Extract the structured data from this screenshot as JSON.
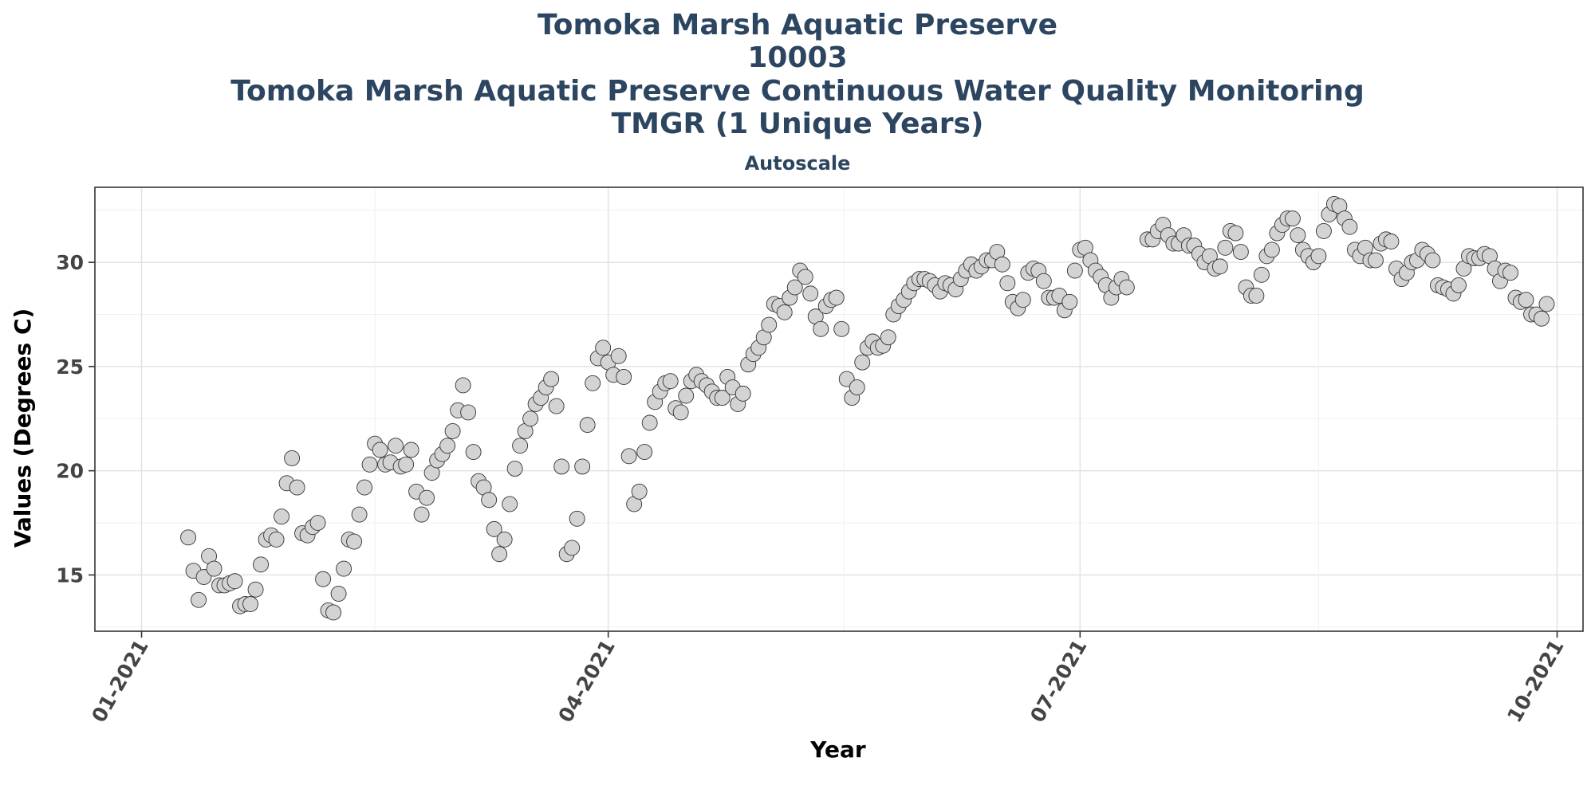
{
  "chart_data": {
    "type": "scatter",
    "title_lines": [
      "Tomoka Marsh Aquatic Preserve",
      "10003",
      "Tomoka Marsh Aquatic Preserve Continuous Water Quality Monitoring",
      "TMGR (1 Unique Years)"
    ],
    "subtitle": "Autoscale",
    "xlabel": "Year",
    "ylabel": "Values (Degrees C)",
    "xlim": [
      "2020-12-23",
      "2021-10-06"
    ],
    "ylim": [
      12.3,
      33.6
    ],
    "x_ticks": [
      {
        "label": "01-2021",
        "date": "2021-01-01"
      },
      {
        "label": "04-2021",
        "date": "2021-04-01"
      },
      {
        "label": "07-2021",
        "date": "2021-07-01"
      },
      {
        "label": "10-2021",
        "date": "2021-10-01"
      }
    ],
    "y_ticks": [
      15,
      20,
      25,
      30
    ],
    "grid": true,
    "colors": {
      "point_fill": "#D3D3D3",
      "point_stroke": "#333333",
      "title": "#2C4560"
    },
    "series": [
      {
        "points": [
          [
            "2021-01-10",
            16.8
          ],
          [
            "2021-01-11",
            15.2
          ],
          [
            "2021-01-12",
            13.8
          ],
          [
            "2021-01-13",
            14.9
          ],
          [
            "2021-01-14",
            15.9
          ],
          [
            "2021-01-15",
            15.3
          ],
          [
            "2021-01-16",
            14.5
          ],
          [
            "2021-01-17",
            14.5
          ],
          [
            "2021-01-18",
            14.6
          ],
          [
            "2021-01-19",
            14.7
          ],
          [
            "2021-01-20",
            13.5
          ],
          [
            "2021-01-21",
            13.6
          ],
          [
            "2021-01-22",
            13.6
          ],
          [
            "2021-01-23",
            14.3
          ],
          [
            "2021-01-24",
            15.5
          ],
          [
            "2021-01-25",
            16.7
          ],
          [
            "2021-01-26",
            16.9
          ],
          [
            "2021-01-27",
            16.7
          ],
          [
            "2021-01-28",
            17.8
          ],
          [
            "2021-01-29",
            19.4
          ],
          [
            "2021-01-30",
            20.6
          ],
          [
            "2021-01-31",
            19.2
          ],
          [
            "2021-02-01",
            17.0
          ],
          [
            "2021-02-02",
            16.9
          ],
          [
            "2021-02-03",
            17.3
          ],
          [
            "2021-02-04",
            17.5
          ],
          [
            "2021-02-05",
            14.8
          ],
          [
            "2021-02-06",
            13.3
          ],
          [
            "2021-02-07",
            13.2
          ],
          [
            "2021-02-08",
            14.1
          ],
          [
            "2021-02-09",
            15.3
          ],
          [
            "2021-02-10",
            16.7
          ],
          [
            "2021-02-11",
            16.6
          ],
          [
            "2021-02-12",
            17.9
          ],
          [
            "2021-02-13",
            19.2
          ],
          [
            "2021-02-14",
            20.3
          ],
          [
            "2021-02-15",
            21.3
          ],
          [
            "2021-02-16",
            21.0
          ],
          [
            "2021-02-17",
            20.3
          ],
          [
            "2021-02-18",
            20.4
          ],
          [
            "2021-02-19",
            21.2
          ],
          [
            "2021-02-20",
            20.2
          ],
          [
            "2021-02-21",
            20.3
          ],
          [
            "2021-02-22",
            21.0
          ],
          [
            "2021-02-23",
            19.0
          ],
          [
            "2021-02-24",
            17.9
          ],
          [
            "2021-02-25",
            18.7
          ],
          [
            "2021-02-26",
            19.9
          ],
          [
            "2021-02-27",
            20.5
          ],
          [
            "2021-02-28",
            20.8
          ],
          [
            "2021-03-01",
            21.2
          ],
          [
            "2021-03-02",
            21.9
          ],
          [
            "2021-03-03",
            22.9
          ],
          [
            "2021-03-04",
            24.1
          ],
          [
            "2021-03-05",
            22.8
          ],
          [
            "2021-03-06",
            20.9
          ],
          [
            "2021-03-07",
            19.5
          ],
          [
            "2021-03-08",
            19.2
          ],
          [
            "2021-03-09",
            18.6
          ],
          [
            "2021-03-10",
            17.2
          ],
          [
            "2021-03-11",
            16.0
          ],
          [
            "2021-03-12",
            16.7
          ],
          [
            "2021-03-13",
            18.4
          ],
          [
            "2021-03-14",
            20.1
          ],
          [
            "2021-03-15",
            21.2
          ],
          [
            "2021-03-16",
            21.9
          ],
          [
            "2021-03-17",
            22.5
          ],
          [
            "2021-03-18",
            23.2
          ],
          [
            "2021-03-19",
            23.5
          ],
          [
            "2021-03-20",
            24.0
          ],
          [
            "2021-03-21",
            24.4
          ],
          [
            "2021-03-22",
            23.1
          ],
          [
            "2021-03-23",
            20.2
          ],
          [
            "2021-03-24",
            16.0
          ],
          [
            "2021-03-25",
            16.3
          ],
          [
            "2021-03-26",
            17.7
          ],
          [
            "2021-03-27",
            20.2
          ],
          [
            "2021-03-28",
            22.2
          ],
          [
            "2021-03-29",
            24.2
          ],
          [
            "2021-03-30",
            25.4
          ],
          [
            "2021-03-31",
            25.9
          ],
          [
            "2021-04-01",
            25.2
          ],
          [
            "2021-04-02",
            24.6
          ],
          [
            "2021-04-03",
            25.5
          ],
          [
            "2021-04-04",
            24.5
          ],
          [
            "2021-04-05",
            20.7
          ],
          [
            "2021-04-06",
            18.4
          ],
          [
            "2021-04-07",
            19.0
          ],
          [
            "2021-04-08",
            20.9
          ],
          [
            "2021-04-09",
            22.3
          ],
          [
            "2021-04-10",
            23.3
          ],
          [
            "2021-04-11",
            23.8
          ],
          [
            "2021-04-12",
            24.2
          ],
          [
            "2021-04-13",
            24.3
          ],
          [
            "2021-04-14",
            23.0
          ],
          [
            "2021-04-15",
            22.8
          ],
          [
            "2021-04-16",
            23.6
          ],
          [
            "2021-04-17",
            24.3
          ],
          [
            "2021-04-18",
            24.6
          ],
          [
            "2021-04-19",
            24.3
          ],
          [
            "2021-04-20",
            24.1
          ],
          [
            "2021-04-21",
            23.8
          ],
          [
            "2021-04-22",
            23.5
          ],
          [
            "2021-04-23",
            23.5
          ],
          [
            "2021-04-24",
            24.5
          ],
          [
            "2021-04-25",
            24.0
          ],
          [
            "2021-04-26",
            23.2
          ],
          [
            "2021-04-27",
            23.7
          ],
          [
            "2021-04-28",
            25.1
          ],
          [
            "2021-04-29",
            25.6
          ],
          [
            "2021-04-30",
            25.9
          ],
          [
            "2021-05-01",
            26.4
          ],
          [
            "2021-05-02",
            27.0
          ],
          [
            "2021-05-03",
            28.0
          ],
          [
            "2021-05-04",
            27.9
          ],
          [
            "2021-05-05",
            27.6
          ],
          [
            "2021-05-06",
            28.3
          ],
          [
            "2021-05-07",
            28.8
          ],
          [
            "2021-05-08",
            29.6
          ],
          [
            "2021-05-09",
            29.3
          ],
          [
            "2021-05-10",
            28.5
          ],
          [
            "2021-05-11",
            27.4
          ],
          [
            "2021-05-12",
            26.8
          ],
          [
            "2021-05-13",
            27.9
          ],
          [
            "2021-05-14",
            28.2
          ],
          [
            "2021-05-15",
            28.3
          ],
          [
            "2021-05-16",
            26.8
          ],
          [
            "2021-05-17",
            24.4
          ],
          [
            "2021-05-18",
            23.5
          ],
          [
            "2021-05-19",
            24.0
          ],
          [
            "2021-05-20",
            25.2
          ],
          [
            "2021-05-21",
            25.9
          ],
          [
            "2021-05-22",
            26.2
          ],
          [
            "2021-05-23",
            25.9
          ],
          [
            "2021-05-24",
            26.0
          ],
          [
            "2021-05-25",
            26.4
          ],
          [
            "2021-05-26",
            27.5
          ],
          [
            "2021-05-27",
            27.9
          ],
          [
            "2021-05-28",
            28.2
          ],
          [
            "2021-05-29",
            28.6
          ],
          [
            "2021-05-30",
            29.0
          ],
          [
            "2021-05-31",
            29.2
          ],
          [
            "2021-06-01",
            29.2
          ],
          [
            "2021-06-02",
            29.1
          ],
          [
            "2021-06-03",
            28.9
          ],
          [
            "2021-06-04",
            28.6
          ],
          [
            "2021-06-05",
            29.0
          ],
          [
            "2021-06-06",
            28.9
          ],
          [
            "2021-06-07",
            28.7
          ],
          [
            "2021-06-08",
            29.2
          ],
          [
            "2021-06-09",
            29.6
          ],
          [
            "2021-06-10",
            29.9
          ],
          [
            "2021-06-11",
            29.6
          ],
          [
            "2021-06-12",
            29.8
          ],
          [
            "2021-06-13",
            30.1
          ],
          [
            "2021-06-14",
            30.1
          ],
          [
            "2021-06-15",
            30.5
          ],
          [
            "2021-06-16",
            29.9
          ],
          [
            "2021-06-17",
            29.0
          ],
          [
            "2021-06-18",
            28.1
          ],
          [
            "2021-06-19",
            27.8
          ],
          [
            "2021-06-20",
            28.2
          ],
          [
            "2021-06-21",
            29.5
          ],
          [
            "2021-06-22",
            29.7
          ],
          [
            "2021-06-23",
            29.6
          ],
          [
            "2021-06-24",
            29.1
          ],
          [
            "2021-06-25",
            28.3
          ],
          [
            "2021-06-26",
            28.3
          ],
          [
            "2021-06-27",
            28.4
          ],
          [
            "2021-06-28",
            27.7
          ],
          [
            "2021-06-29",
            28.1
          ],
          [
            "2021-06-30",
            29.6
          ],
          [
            "2021-07-01",
            30.6
          ],
          [
            "2021-07-02",
            30.7
          ],
          [
            "2021-07-03",
            30.1
          ],
          [
            "2021-07-04",
            29.6
          ],
          [
            "2021-07-05",
            29.3
          ],
          [
            "2021-07-06",
            28.9
          ],
          [
            "2021-07-07",
            28.3
          ],
          [
            "2021-07-08",
            28.8
          ],
          [
            "2021-07-09",
            29.2
          ],
          [
            "2021-07-10",
            28.8
          ],
          [
            "2021-07-14",
            31.1
          ],
          [
            "2021-07-15",
            31.1
          ],
          [
            "2021-07-16",
            31.5
          ],
          [
            "2021-07-17",
            31.8
          ],
          [
            "2021-07-18",
            31.3
          ],
          [
            "2021-07-19",
            30.9
          ],
          [
            "2021-07-20",
            30.9
          ],
          [
            "2021-07-21",
            31.3
          ],
          [
            "2021-07-22",
            30.8
          ],
          [
            "2021-07-23",
            30.8
          ],
          [
            "2021-07-24",
            30.4
          ],
          [
            "2021-07-25",
            30.0
          ],
          [
            "2021-07-26",
            30.3
          ],
          [
            "2021-07-27",
            29.7
          ],
          [
            "2021-07-28",
            29.8
          ],
          [
            "2021-07-29",
            30.7
          ],
          [
            "2021-07-30",
            31.5
          ],
          [
            "2021-07-31",
            31.4
          ],
          [
            "2021-08-01",
            30.5
          ],
          [
            "2021-08-02",
            28.8
          ],
          [
            "2021-08-03",
            28.4
          ],
          [
            "2021-08-04",
            28.4
          ],
          [
            "2021-08-05",
            29.4
          ],
          [
            "2021-08-06",
            30.3
          ],
          [
            "2021-08-07",
            30.6
          ],
          [
            "2021-08-08",
            31.4
          ],
          [
            "2021-08-09",
            31.8
          ],
          [
            "2021-08-10",
            32.1
          ],
          [
            "2021-08-11",
            32.1
          ],
          [
            "2021-08-12",
            31.3
          ],
          [
            "2021-08-13",
            30.6
          ],
          [
            "2021-08-14",
            30.3
          ],
          [
            "2021-08-15",
            30.0
          ],
          [
            "2021-08-16",
            30.3
          ],
          [
            "2021-08-17",
            31.5
          ],
          [
            "2021-08-18",
            32.3
          ],
          [
            "2021-08-19",
            32.8
          ],
          [
            "2021-08-20",
            32.7
          ],
          [
            "2021-08-21",
            32.1
          ],
          [
            "2021-08-22",
            31.7
          ],
          [
            "2021-08-23",
            30.6
          ],
          [
            "2021-08-24",
            30.3
          ],
          [
            "2021-08-25",
            30.7
          ],
          [
            "2021-08-26",
            30.1
          ],
          [
            "2021-08-27",
            30.1
          ],
          [
            "2021-08-28",
            30.9
          ],
          [
            "2021-08-29",
            31.1
          ],
          [
            "2021-08-30",
            31.0
          ],
          [
            "2021-08-31",
            29.7
          ],
          [
            "2021-09-01",
            29.2
          ],
          [
            "2021-09-02",
            29.5
          ],
          [
            "2021-09-03",
            30.0
          ],
          [
            "2021-09-04",
            30.1
          ],
          [
            "2021-09-05",
            30.6
          ],
          [
            "2021-09-06",
            30.4
          ],
          [
            "2021-09-07",
            30.1
          ],
          [
            "2021-09-08",
            28.9
          ],
          [
            "2021-09-09",
            28.8
          ],
          [
            "2021-09-10",
            28.7
          ],
          [
            "2021-09-11",
            28.5
          ],
          [
            "2021-09-12",
            28.9
          ],
          [
            "2021-09-13",
            29.7
          ],
          [
            "2021-09-14",
            30.3
          ],
          [
            "2021-09-15",
            30.2
          ],
          [
            "2021-09-16",
            30.2
          ],
          [
            "2021-09-17",
            30.4
          ],
          [
            "2021-09-18",
            30.3
          ],
          [
            "2021-09-19",
            29.7
          ],
          [
            "2021-09-20",
            29.1
          ],
          [
            "2021-09-21",
            29.6
          ],
          [
            "2021-09-22",
            29.5
          ],
          [
            "2021-09-23",
            28.3
          ],
          [
            "2021-09-24",
            28.1
          ],
          [
            "2021-09-25",
            28.2
          ],
          [
            "2021-09-26",
            27.5
          ],
          [
            "2021-09-27",
            27.5
          ],
          [
            "2021-09-28",
            27.3
          ],
          [
            "2021-09-29",
            28.0
          ]
        ]
      }
    ]
  }
}
